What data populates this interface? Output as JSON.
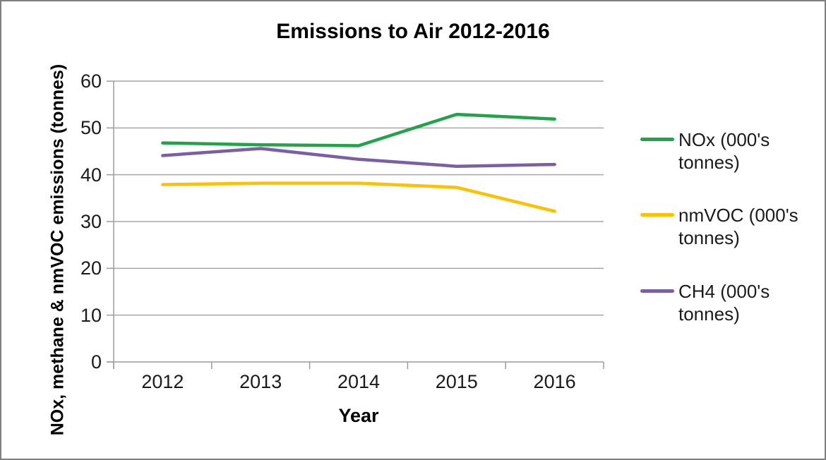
{
  "chart_data": {
    "type": "line",
    "title": "Emissions to Air 2012-2016",
    "xlabel": "Year",
    "ylabel": "NOx, methane & nmVOC emissions (tonnes)",
    "categories": [
      "2012",
      "2013",
      "2014",
      "2015",
      "2016"
    ],
    "yticks": [
      0,
      10,
      20,
      30,
      40,
      50,
      60
    ],
    "ylim": [
      0,
      60
    ],
    "grid": "horizontal",
    "legend_position": "right",
    "series": [
      {
        "name": "NOx",
        "legend_label": "NOx (000's tonnes)",
        "color": "#22A34A",
        "values": [
          46.8,
          46.4,
          46.2,
          52.9,
          51.9
        ]
      },
      {
        "name": "nmVOC",
        "legend_label": "nmVOC (000's tonnes)",
        "color": "#FFC000",
        "values": [
          37.9,
          38.2,
          38.2,
          37.3,
          32.2
        ]
      },
      {
        "name": "CH4",
        "legend_label": "CH4 (000's tonnes)",
        "color": "#7A5FA7",
        "values": [
          44.1,
          45.6,
          43.3,
          41.8,
          42.2
        ]
      }
    ],
    "colors": {
      "gridline": "#A6A6A6",
      "axis": "#9B9B9B",
      "frame_border": "#7F7F7F",
      "title_text": "#000000",
      "tick_text": "#1A1A1A"
    }
  }
}
